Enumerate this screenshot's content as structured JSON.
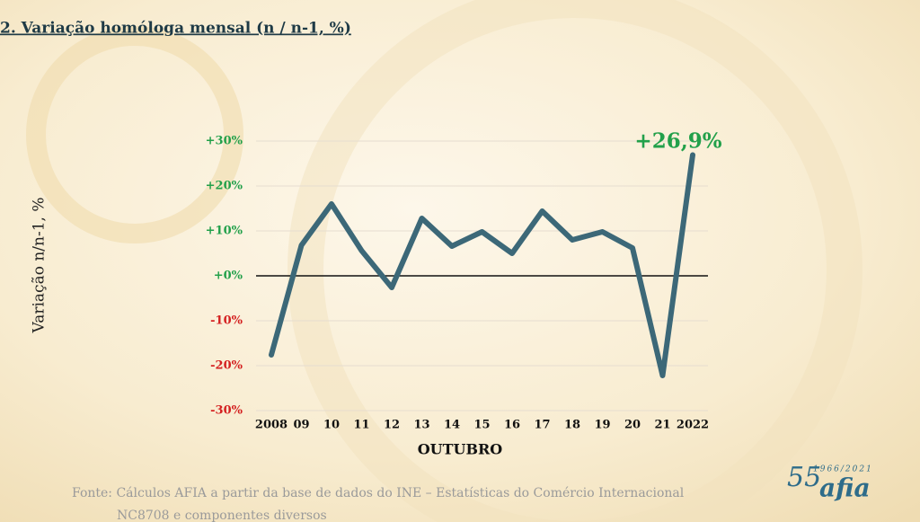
{
  "chart_data": {
    "type": "line",
    "title": "2. Variação homóloga mensal (n / n-1, %)",
    "y_label": "Variação n/n-1, %",
    "x_label": "OUTUBRO",
    "categories": [
      "2008",
      "09",
      "10",
      "11",
      "12",
      "13",
      "14",
      "15",
      "16",
      "17",
      "18",
      "19",
      "20",
      "21",
      "2022"
    ],
    "series": [
      {
        "color": "#3c6878",
        "values": [
          -17.6,
          6.8,
          16,
          5.6,
          -2.6,
          12.8,
          6.6,
          9.8,
          5,
          14.4,
          8,
          9.8,
          6.2,
          -22.2,
          26.9
        ],
        "value_labels": [
          null,
          null,
          null,
          null,
          null,
          null,
          null,
          null,
          null,
          null,
          null,
          null,
          null,
          null,
          "+26,9%"
        ]
      }
    ],
    "ylim": [
      -30,
      30
    ],
    "yticks": [
      {
        "value": -30,
        "label": "-30%"
      },
      {
        "value": -20,
        "label": "-20%"
      },
      {
        "value": -10,
        "label": "-10%"
      },
      {
        "value": 0,
        "label": "+0%"
      },
      {
        "value": 10,
        "label": "+10%"
      },
      {
        "value": 20,
        "label": "+20%"
      },
      {
        "value": 30,
        "label": "+30%"
      }
    ],
    "grid": true
  },
  "source": {
    "line1": "Fonte: Cálculos AFIA a partir da base de dados do INE – Estatísticas do Comércio Internacional",
    "line2": "NC8708 e componentes diversos"
  },
  "logo": {
    "number": "55",
    "years": "1966/2021",
    "name": "afia"
  }
}
